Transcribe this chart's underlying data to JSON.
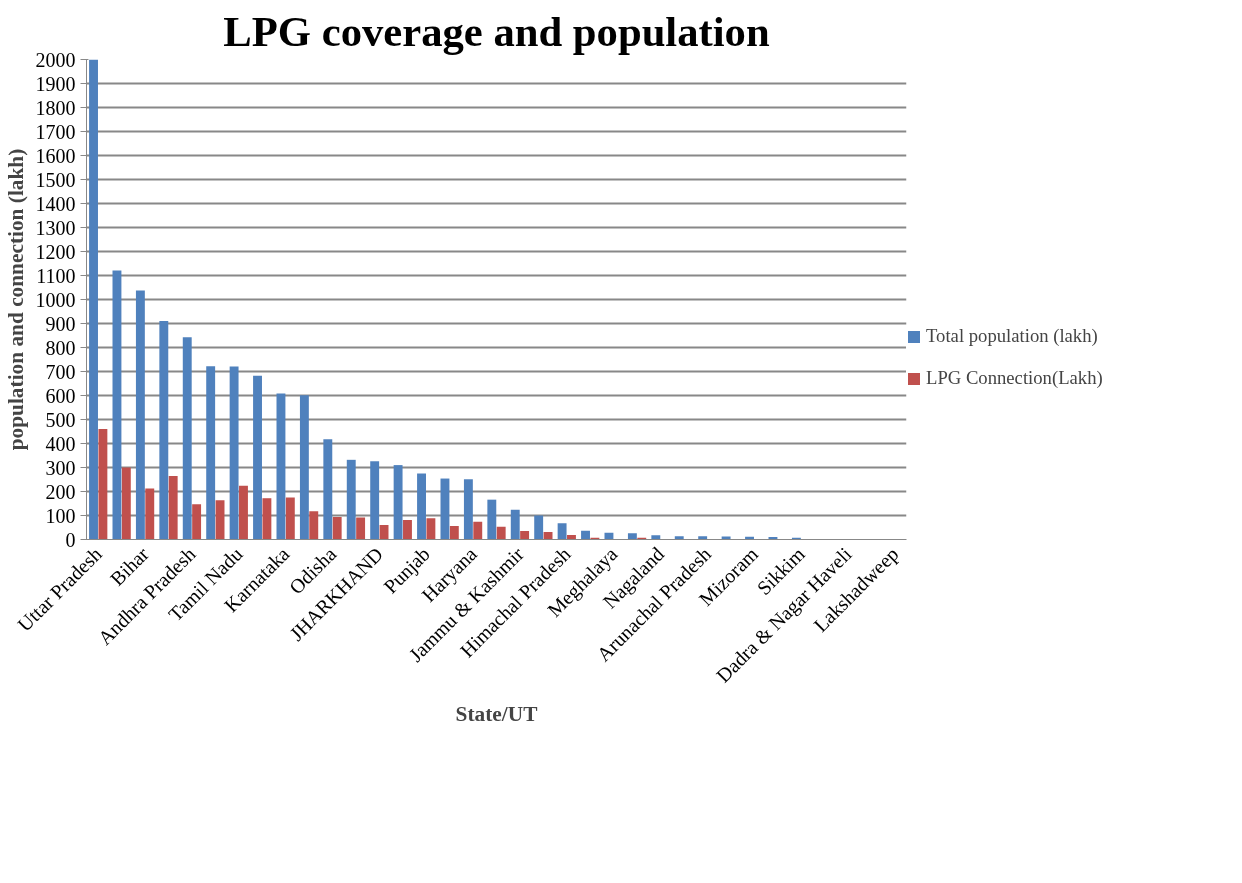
{
  "chart_data": {
    "type": "bar",
    "title": "LPG coverage and population",
    "xlabel": "State/UT",
    "ylabel": "population and connection (lakh)",
    "categories": [
      "Uttar Pradesh",
      null,
      "Bihar",
      null,
      "Andhra Pradesh",
      null,
      "Tamil Nadu",
      null,
      "Karnataka",
      null,
      "Odisha",
      null,
      "JHARKHAND",
      null,
      "Punjab",
      null,
      "Haryana",
      null,
      "Jammu & Kashmir",
      null,
      "Himachal Pradesh",
      null,
      "Meghalaya",
      null,
      "Nagaland",
      null,
      "Arunachal Pradesh",
      null,
      "Mizoram",
      null,
      "Sikkim",
      null,
      "Dadra & Nagar Haveli",
      null,
      "Lakshadweep"
    ],
    "series": [
      {
        "name": "Total population (lakh)",
        "color": "#4f81bd",
        "values": [
          2000,
          1121,
          1037,
          910,
          843,
          722,
          721,
          682,
          608,
          601,
          418,
          332,
          326,
          310,
          275,
          254,
          251,
          166,
          124,
          100,
          68,
          36,
          28,
          26,
          18,
          14,
          14,
          12,
          11,
          10,
          7,
          null,
          null,
          null,
          null
        ]
      },
      {
        "name": "LPG Connection(Lakh)",
        "color": "#c0504d",
        "values": [
          460,
          300,
          212,
          265,
          147,
          164,
          224,
          172,
          175,
          118,
          94,
          92,
          60,
          81,
          89,
          56,
          74,
          53,
          35,
          31,
          19,
          7,
          null,
          7,
          null,
          null,
          null,
          null,
          null,
          null,
          null,
          null,
          null,
          null,
          null
        ]
      }
    ],
    "ylim": [
      0,
      2000
    ],
    "yticks": [
      0,
      100,
      200,
      300,
      400,
      500,
      600,
      700,
      800,
      900,
      1000,
      1100,
      1200,
      1300,
      1400,
      1500,
      1600,
      1700,
      1800,
      1900,
      2000
    ],
    "grid": "y",
    "legend": "right"
  }
}
